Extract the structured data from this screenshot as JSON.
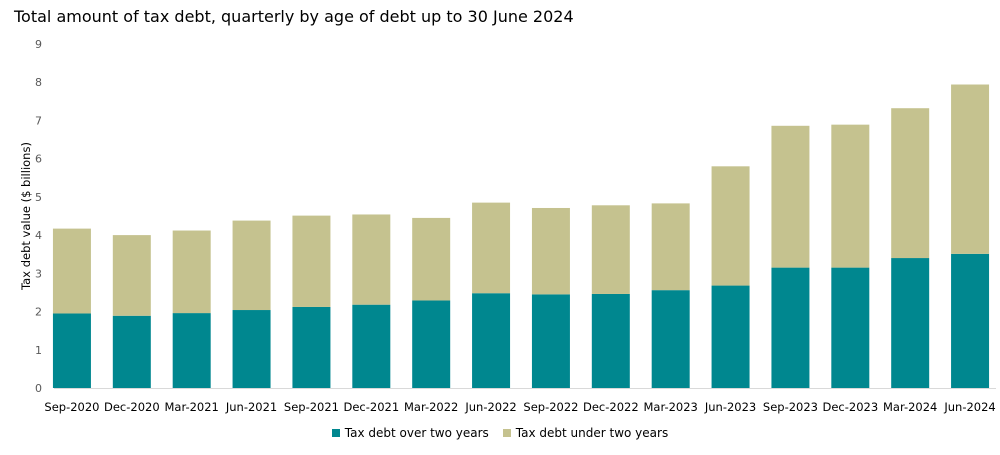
{
  "chart_data": {
    "type": "bar",
    "stacked": true,
    "title": "Total amount of tax debt, quarterly by age of debt up to 30 June 2024",
    "xlabel": "",
    "ylabel": "Tax debt value ($ billions)",
    "ylim": [
      0,
      9
    ],
    "yticks": [
      "0",
      "1",
      "2",
      "3",
      "4",
      "5",
      "6",
      "7",
      "8",
      "9"
    ],
    "grid": false,
    "legend_position": "bottom",
    "categories": [
      "Sep-2020",
      "Dec-2020",
      "Mar-2021",
      "Jun-2021",
      "Sep-2021",
      "Dec-2021",
      "Mar-2022",
      "Jun-2022",
      "Sep-2022",
      "Dec-2022",
      "Mar-2023",
      "Jun-2023",
      "Sep-2023",
      "Dec-2023",
      "Mar-2024",
      "Jun-2024"
    ],
    "series": [
      {
        "name": "Tax debt over two years",
        "color": "#00878f",
        "values": [
          1.95,
          1.89,
          1.96,
          2.04,
          2.12,
          2.18,
          2.29,
          2.48,
          2.45,
          2.46,
          2.56,
          2.68,
          3.15,
          3.15,
          3.4,
          3.51
        ]
      },
      {
        "name": "Tax debt under two years",
        "color": "#c5c28f",
        "values": [
          2.22,
          2.11,
          2.16,
          2.34,
          2.39,
          2.36,
          2.16,
          2.37,
          2.26,
          2.32,
          2.27,
          3.12,
          3.71,
          3.74,
          3.92,
          4.43
        ]
      }
    ]
  }
}
